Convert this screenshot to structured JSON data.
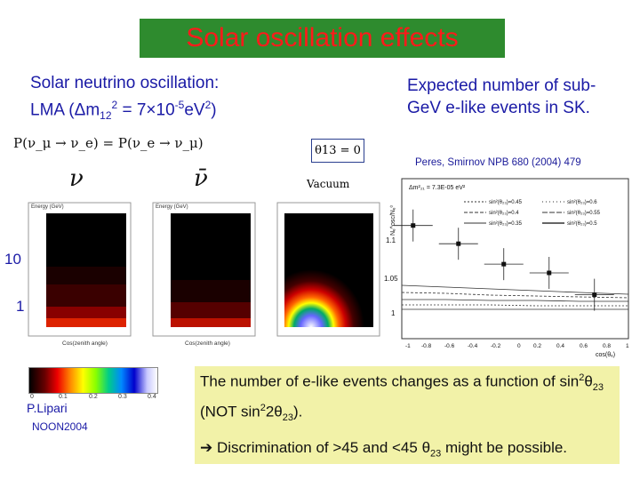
{
  "title": "Solar oscillation effects",
  "left_heading": {
    "line1": "Solar neutrino oscillation:",
    "line2_prefix": "LMA (",
    "delta": "Δ",
    "m": "m",
    "sub12": "12",
    "sup2": "2",
    "eq": " = 7×10",
    "exp": "-5",
    "unit": "eV",
    "unit_sup": "2",
    "close": ")"
  },
  "right_heading": "Expected number of sub-GeV e-like events in SK.",
  "reference": "Peres, Smirnov NPB 680 (2004) 479",
  "formula": "P(ν_μ → ν_e) = P(ν_e → ν_μ)",
  "theta_box": "θ13 = 0",
  "nu_label": "ν",
  "nubar_label": "ν̄",
  "vacuum_label": "Vacuum",
  "axis_label_10": "10",
  "axis_label_1": "1",
  "panel_energy_label": "Energy (GeV)",
  "panel_cos_label": "Cos(zenith angle)",
  "colorbar_ticks": [
    "0",
    "0.1",
    "0.2",
    "0.3",
    "0.4"
  ],
  "author": "P.Lipari",
  "conference": "NOON2004",
  "bottom_text": {
    "line1": "The number of e-like events changes as a function of sin",
    "line1_sup": "2",
    "theta": "θ",
    "sub23": "23",
    "line1b": " (NOT sin",
    "line1b_sup": "2",
    "line1c": "2",
    "line1d": "θ",
    "line1e_sub": "23",
    "line1f": ").",
    "arrow": "➔",
    "line2": " Discrimination of >45 and <45 ",
    "line2_theta": "θ",
    "line2_sub": "23",
    "line2_end": " might be possible."
  },
  "right_plot": {
    "ylabel": "N_e^osc/N_e^0",
    "xlabel": "cos(θ_e)",
    "legend_header": "Δm²₂₁ = 7.3E-05 eV²",
    "legend": [
      "sin²(θ₂₃)=0.45",
      "sin²(θ₂₃)=0.4",
      "sin²(θ₂₃)=0.35",
      "sin²(θ₂₃)=0.6",
      "sin²(θ₂₃)=0.55",
      "sin²(θ₂₃)=0.5"
    ],
    "yticks": [
      "1.1",
      "1.05",
      "1"
    ],
    "xticks": [
      "-1",
      "-0.8",
      "-0.6",
      "-0.4",
      "-0.2",
      "0",
      "0.2",
      "0.4",
      "0.6",
      "0.8",
      "1"
    ],
    "points": [
      {
        "x": -0.9,
        "y": 1.115
      },
      {
        "x": -0.5,
        "y": 1.09
      },
      {
        "x": -0.1,
        "y": 1.062
      },
      {
        "x": 0.3,
        "y": 1.05
      },
      {
        "x": 0.7,
        "y": 1.02
      }
    ]
  }
}
